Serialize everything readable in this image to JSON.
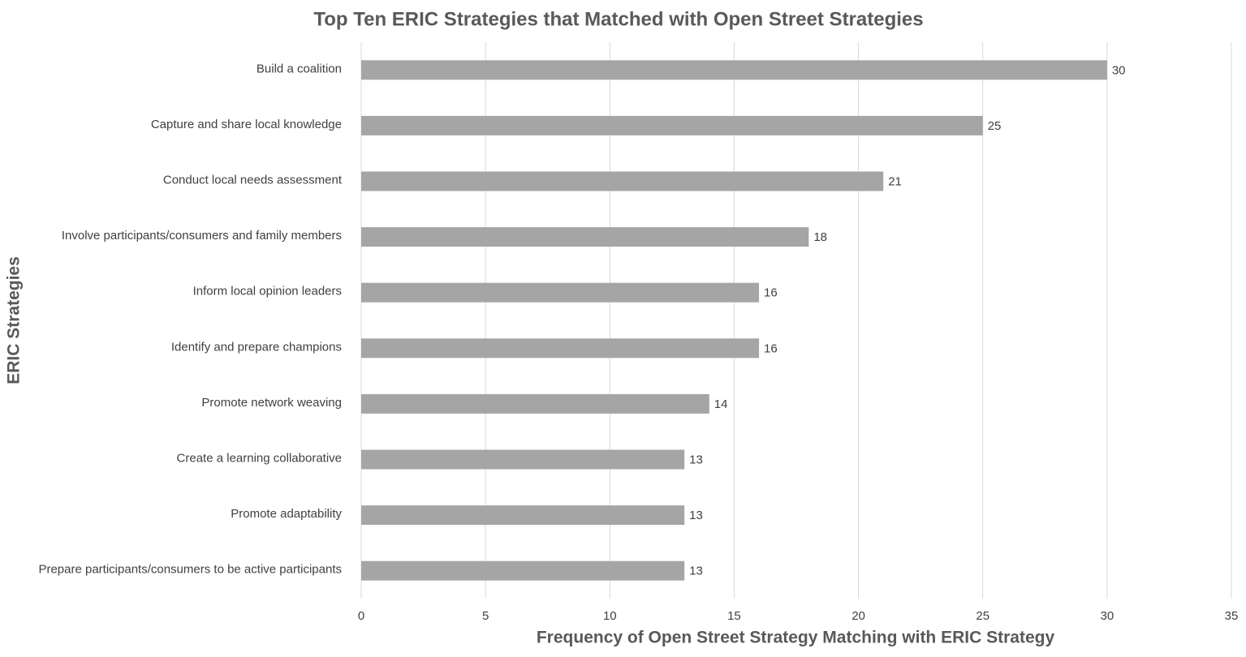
{
  "chart_data": {
    "type": "barh",
    "title": "Top Ten ERIC Strategies that Matched with Open Street Strategies",
    "x_label": "Frequency of Open Street Strategy Matching with ERIC Strategy",
    "y_label": "ERIC Strategies",
    "categories": [
      "Build a coalition",
      "Capture and share local knowledge",
      "Conduct local needs assessment",
      "Involve participants/consumers and family members",
      "Inform local opinion leaders",
      "Identify and prepare champions",
      "Promote network weaving",
      "Create a learning collaborative",
      "Promote adaptability",
      "Prepare participants/consumers to be active participants"
    ],
    "values": [
      30,
      25,
      21,
      18,
      16,
      16,
      14,
      13,
      13,
      13
    ],
    "color": "#a5a5a5",
    "xlim": [
      0,
      35
    ],
    "xticks": [
      0,
      5,
      10,
      15,
      20,
      25,
      30,
      35
    ],
    "grid": true
  }
}
